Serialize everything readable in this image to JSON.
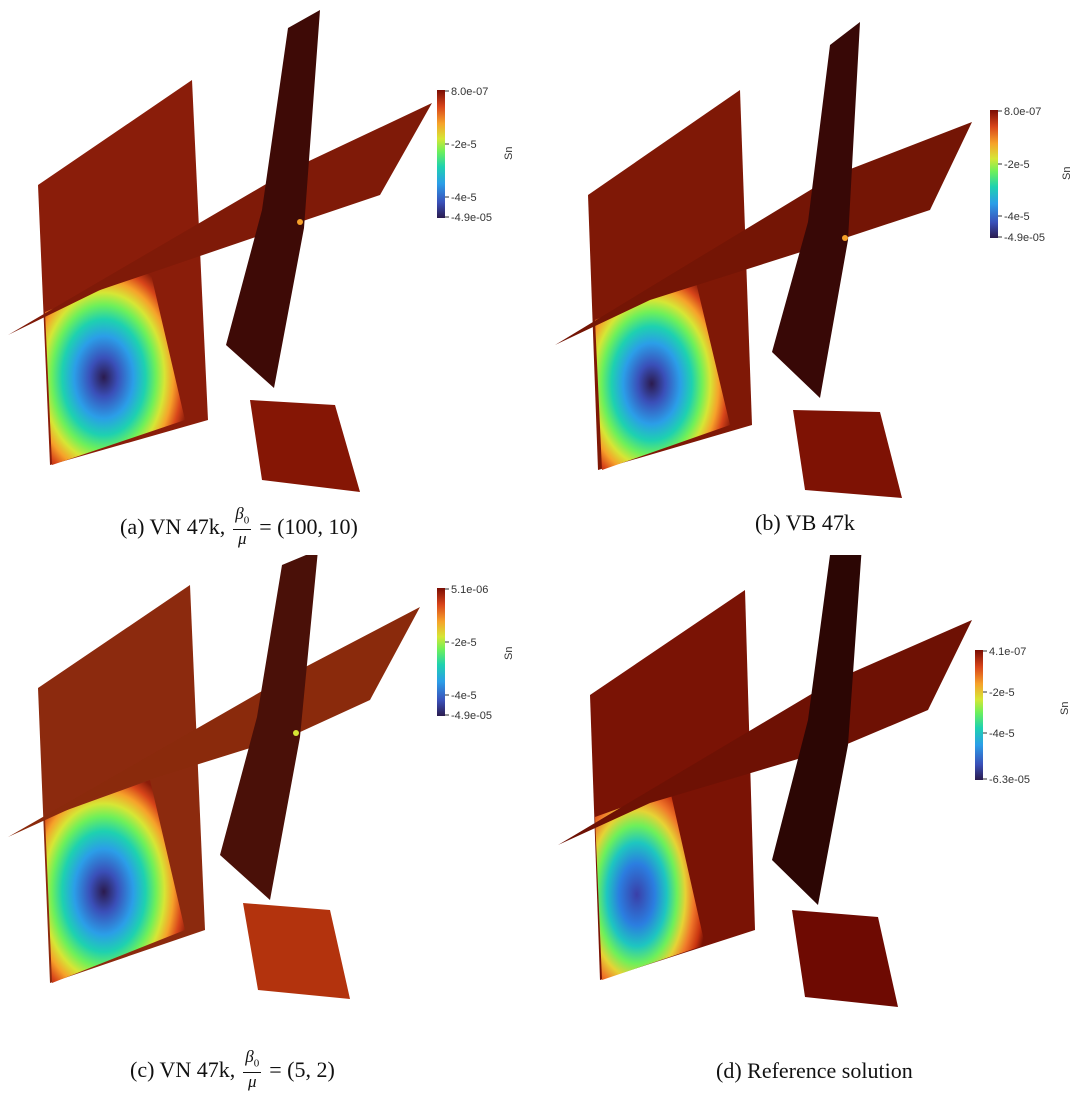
{
  "panels": [
    {
      "id": "a",
      "colorbar": {
        "title": "Sn",
        "max_label": "8.0e-07",
        "ticks": [
          "-2e-5",
          "-4e-5"
        ],
        "min_label": "-4.9e-05"
      },
      "caption": {
        "prefix": "(a) VN 47k,",
        "frac_num": "β",
        "frac_num_sub": "0",
        "frac_den": "μ",
        "suffix": "= (100, 10)"
      }
    },
    {
      "id": "b",
      "colorbar": {
        "title": "Sn",
        "max_label": "8.0e-07",
        "ticks": [
          "-2e-5",
          "-4e-5"
        ],
        "min_label": "-4.9e-05"
      },
      "caption": {
        "prefix": "(b) VB 47k"
      }
    },
    {
      "id": "c",
      "colorbar": {
        "title": "Sn",
        "max_label": "5.1e-06",
        "ticks": [
          "-2e-5",
          "-4e-5"
        ],
        "min_label": "-4.9e-05"
      },
      "caption": {
        "prefix": "(c) VN 47k,",
        "frac_num": "β",
        "frac_num_sub": "0",
        "frac_den": "μ",
        "suffix": "= (5, 2)"
      }
    },
    {
      "id": "d",
      "colorbar": {
        "title": "Sn",
        "max_label": "4.1e-07",
        "ticks": [
          "-2e-5",
          "-4e-5"
        ],
        "min_label": "-6.3e-05"
      },
      "caption": {
        "prefix": "(d) Reference solution"
      }
    }
  ],
  "colors": {
    "plane_main": "#8a1d0a",
    "plane_dark": "#3e0a06",
    "plane_reference": "#7a1305",
    "colormap": [
      "#2b1b4e",
      "#3a4fb8",
      "#2b9ee8",
      "#1ed1b0",
      "#6ef05a",
      "#d6e635",
      "#f6a12a",
      "#d8451a",
      "#7a0d03"
    ]
  }
}
